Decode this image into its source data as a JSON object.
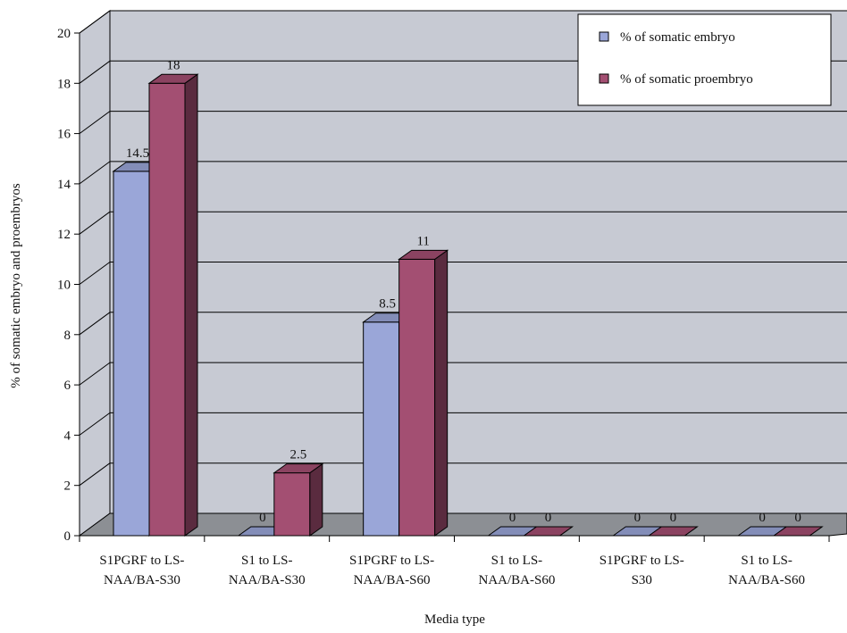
{
  "chart_data": {
    "type": "bar",
    "xlabel": "Media type",
    "ylabel": "% of somatic embryo and proembryos",
    "ylim": [
      0,
      20
    ],
    "yticks": [
      0,
      2,
      4,
      6,
      8,
      10,
      12,
      14,
      16,
      18,
      20
    ],
    "grid": true,
    "legend_position": "top-right",
    "categories": [
      [
        "S1PGRF to LS-",
        "NAA/BA-S30"
      ],
      [
        "S1 to LS-",
        "NAA/BA-S30"
      ],
      [
        "S1PGRF to LS-",
        "NAA/BA-S60"
      ],
      [
        "S1 to LS-",
        "NAA/BA-S60"
      ],
      [
        "S1PGRF to LS-",
        "S30"
      ],
      [
        "S1 to LS-",
        "NAA/BA-S60"
      ]
    ],
    "series": [
      {
        "name": "% of somatic embryo",
        "values": [
          14.5,
          0,
          8.5,
          0,
          0,
          0
        ],
        "labels": [
          "14.5",
          "0",
          "8.5",
          "0",
          "0",
          "0"
        ],
        "color": "#9aa6d8"
      },
      {
        "name": "% of somatic proembryo",
        "values": [
          18,
          2.5,
          11,
          0,
          0,
          0
        ],
        "labels": [
          "18",
          "2.5",
          "11",
          "0",
          "0",
          "0"
        ],
        "color": "#a34f72"
      }
    ],
    "colors": {
      "wall": "#c7cad3",
      "floor": "#8c8f94",
      "grid": "#000000"
    }
  }
}
